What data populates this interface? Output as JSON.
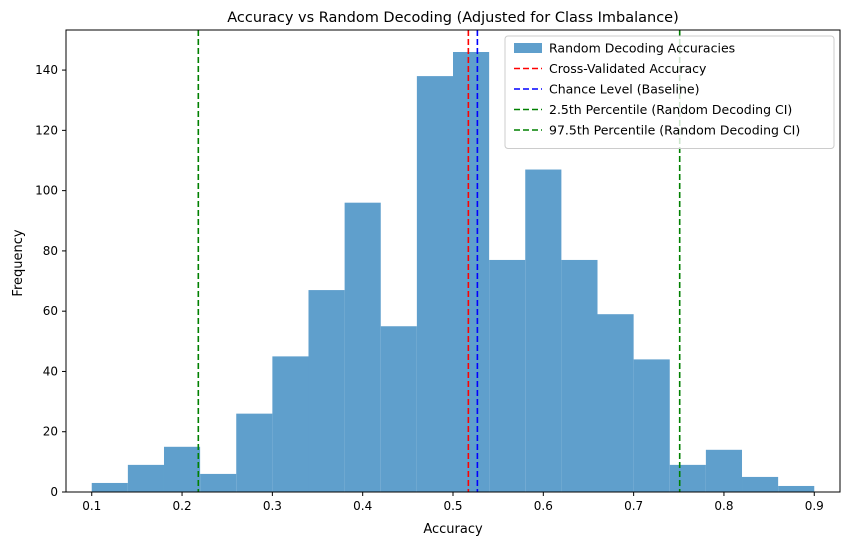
{
  "chart_data": {
    "type": "bar",
    "title": "Accuracy vs Random Decoding (Adjusted for Class Imbalance)",
    "xlabel": "Accuracy",
    "ylabel": "Frequency",
    "xlim": [
      0.0715,
      0.9285
    ],
    "ylim": [
      0,
      153.3
    ],
    "xticks": [
      0.1,
      0.2,
      0.3,
      0.4,
      0.5,
      0.6,
      0.7,
      0.8,
      0.9
    ],
    "xtick_labels": [
      "0.1",
      "0.2",
      "0.3",
      "0.4",
      "0.5",
      "0.6",
      "0.7",
      "0.8",
      "0.9"
    ],
    "yticks": [
      0,
      20,
      40,
      60,
      80,
      100,
      120,
      140
    ],
    "ytick_labels": [
      "0",
      "20",
      "40",
      "60",
      "80",
      "100",
      "120",
      "140"
    ],
    "bin_edges": [
      0.1,
      0.14,
      0.18,
      0.22,
      0.26,
      0.3,
      0.34,
      0.38,
      0.42,
      0.46,
      0.5,
      0.54,
      0.58,
      0.62,
      0.66,
      0.7,
      0.74,
      0.78,
      0.82,
      0.86,
      0.9
    ],
    "bin_counts": [
      3,
      9,
      15,
      6,
      26,
      45,
      67,
      96,
      55,
      138,
      146,
      77,
      107,
      77,
      59,
      44,
      9,
      14,
      5,
      2
    ],
    "bar_color": "#5f9fcc",
    "series": [
      {
        "name": "Random Decoding Accuracies",
        "kind": "hist",
        "color": "#5f9fcc"
      }
    ],
    "vlines": [
      {
        "name": "Cross-Validated Accuracy",
        "x": 0.517,
        "color": "#ff0000"
      },
      {
        "name": "Chance Level (Baseline)",
        "x": 0.527,
        "color": "#0000ff"
      },
      {
        "name": "2.5th Percentile (Random Decoding CI)",
        "x": 0.218,
        "color": "#008000"
      },
      {
        "name": "97.5th Percentile (Random Decoding CI)",
        "x": 0.751,
        "color": "#008000"
      }
    ],
    "legend_position": "top-right",
    "grid": false
  }
}
